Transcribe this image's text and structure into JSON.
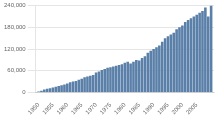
{
  "chart_data": {
    "type": "bar",
    "x": [
      1950,
      1951,
      1952,
      1953,
      1954,
      1955,
      1956,
      1957,
      1958,
      1959,
      1960,
      1961,
      1962,
      1963,
      1964,
      1965,
      1966,
      1967,
      1968,
      1969,
      1970,
      1971,
      1972,
      1973,
      1974,
      1975,
      1976,
      1977,
      1978,
      1979,
      1980,
      1981,
      1982,
      1983,
      1984,
      1985,
      1986,
      1987,
      1988,
      1989,
      1990,
      1991,
      1992,
      1993,
      1994,
      1995,
      1996,
      1997,
      1998,
      1999,
      2000,
      2001,
      2002,
      2003,
      2004,
      2005,
      2006,
      2007,
      2008,
      2009,
      2010
    ],
    "values": [
      3000,
      5000,
      8000,
      10000,
      12000,
      14000,
      16000,
      18000,
      20000,
      22000,
      25000,
      28000,
      30000,
      32000,
      35000,
      38000,
      42000,
      44000,
      46000,
      48000,
      55000,
      58000,
      62000,
      65000,
      68000,
      70000,
      72000,
      74000,
      76000,
      78000,
      82000,
      85000,
      80000,
      85000,
      90000,
      88000,
      95000,
      100000,
      110000,
      115000,
      120000,
      125000,
      130000,
      140000,
      150000,
      155000,
      160000,
      165000,
      175000,
      180000,
      185000,
      195000,
      200000,
      205000,
      210000,
      215000,
      220000,
      225000,
      235000,
      210000,
      240000
    ],
    "color": "#5a7fa8",
    "xlim": [
      1949,
      2011
    ],
    "xticks": [
      1950,
      1955,
      1960,
      1965,
      1970,
      1975,
      1980,
      1985,
      1990,
      1995,
      2000,
      2005
    ],
    "ylim": [
      0,
      240000
    ],
    "yticks": [
      0,
      {
        "value": 60000,
        "label": "60,000"
      },
      {
        "value": 120000,
        "label": "120,000"
      },
      {
        "value": 180000,
        "label": "180,000"
      },
      {
        "value": 240000,
        "label": "240,000"
      }
    ],
    "grid": "y"
  }
}
